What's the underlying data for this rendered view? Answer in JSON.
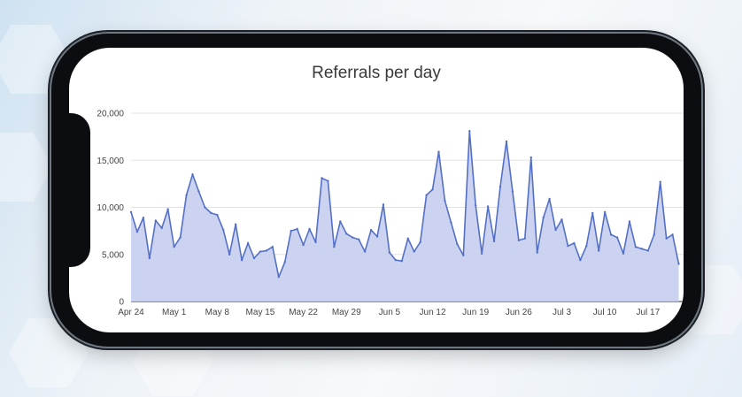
{
  "chart_data": {
    "type": "area",
    "title": "Referrals per day",
    "xlabel": "",
    "ylabel": "",
    "ylim": [
      0,
      20000
    ],
    "yticks": [
      0,
      5000,
      10000,
      15000,
      20000
    ],
    "ytick_labels": [
      "0",
      "5,000",
      "10,000",
      "15,000",
      "20,000"
    ],
    "xtick_labels": [
      "Apr 24",
      "May 1",
      "May 8",
      "May 15",
      "May 22",
      "May 29",
      "Jun 5",
      "Jun 12",
      "Jun 19",
      "Jun 26",
      "Jul 3",
      "Jul 10",
      "Jul 17"
    ],
    "grid": true,
    "legend": "none",
    "line_color": "#5470c6",
    "fill_color": "#c5ceef",
    "values": [
      9500,
      7400,
      8900,
      4600,
      8600,
      7800,
      9800,
      5800,
      6800,
      11300,
      13500,
      11700,
      10000,
      9400,
      9200,
      7600,
      5000,
      8200,
      4400,
      6200,
      4600,
      5300,
      5400,
      5800,
      2600,
      4200,
      7500,
      7700,
      6000,
      7700,
      6300,
      13100,
      12800,
      5800,
      8500,
      7200,
      6800,
      6600,
      5300,
      7600,
      6900,
      10300,
      5200,
      4400,
      4300,
      6700,
      5300,
      6300,
      11300,
      11900,
      15900,
      10700,
      8400,
      6100,
      4900,
      18100,
      10200,
      5100,
      10100,
      6400,
      12200,
      17000,
      11700,
      6500,
      6700,
      15300,
      5200,
      8900,
      10900,
      7600,
      8700,
      5900,
      6200,
      4400,
      5900,
      9400,
      5400,
      9500,
      7100,
      6800,
      5100,
      8500,
      5800,
      5600,
      5400,
      7100,
      12700,
      6700,
      7100,
      4000
    ]
  }
}
